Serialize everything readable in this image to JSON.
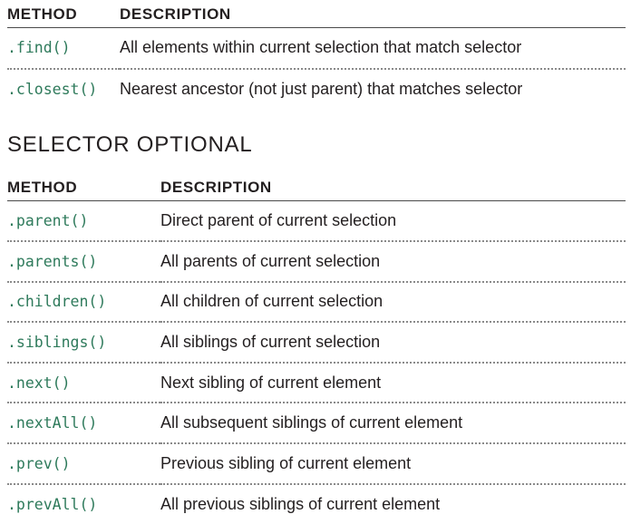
{
  "top_table": {
    "headers": {
      "method": "METHOD",
      "description": "DESCRIPTION"
    },
    "rows": [
      {
        "method": ".find()",
        "description": "All elements within current selection that match selector"
      },
      {
        "method": ".closest()",
        "description": "Nearest ancestor (not just parent) that matches selector"
      }
    ]
  },
  "section_title": "SELECTOR OPTIONAL",
  "bottom_table": {
    "headers": {
      "method": "METHOD",
      "description": "DESCRIPTION"
    },
    "rows": [
      {
        "method": ".parent()",
        "description": "Direct parent of current selection"
      },
      {
        "method": ".parents()",
        "description": "All parents of current selection"
      },
      {
        "method": ".children()",
        "description": "All children of current selection"
      },
      {
        "method": ".siblings()",
        "description": "All siblings of current selection"
      },
      {
        "method": ".next()",
        "description": "Next sibling of current element"
      },
      {
        "method": ".nextAll()",
        "description": "All subsequent siblings of current element"
      },
      {
        "method": ".prev()",
        "description": "Previous sibling of current element"
      },
      {
        "method": ".prevAll()",
        "description": "All previous siblings of current element"
      }
    ]
  },
  "colors": {
    "method_text": "#2e7a5b",
    "body_text": "#231f20",
    "divider": "#8a8a8a"
  }
}
